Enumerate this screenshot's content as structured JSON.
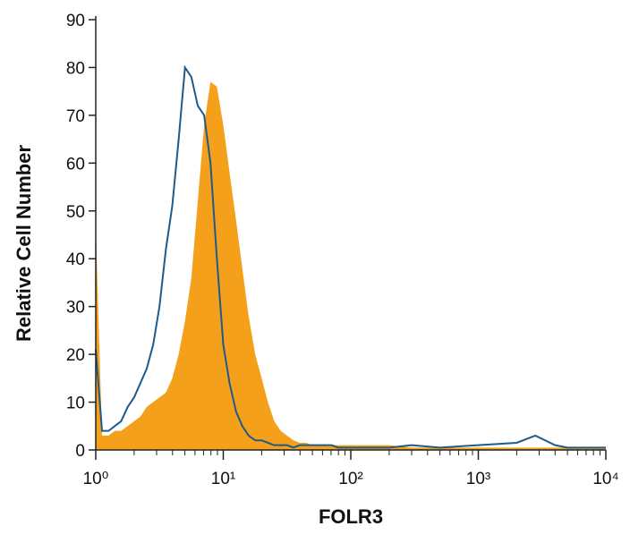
{
  "chart_data": {
    "type": "histogram-overlay",
    "x_label": "FOLR3",
    "y_label": "Relative Cell Number",
    "x_log": true,
    "xlim": [
      1,
      10000
    ],
    "xticks": [
      {
        "value": 1,
        "label": "10⁰"
      },
      {
        "value": 10,
        "label": "10¹"
      },
      {
        "value": 100,
        "label": "10²"
      },
      {
        "value": 1000,
        "label": "10³"
      },
      {
        "value": 10000,
        "label": "10⁴"
      }
    ],
    "ylim": [
      0,
      90
    ],
    "yticks": [
      0,
      10,
      20,
      30,
      40,
      50,
      60,
      70,
      80,
      90
    ],
    "x": [
      1,
      1.12,
      1.26,
      1.41,
      1.58,
      1.78,
      2,
      2.24,
      2.51,
      2.82,
      3.16,
      3.55,
      3.98,
      4.47,
      5.01,
      5.62,
      6.31,
      7.08,
      7.94,
      8.91,
      10,
      11.2,
      12.6,
      14.1,
      15.8,
      17.8,
      20,
      22.4,
      25.1,
      28.2,
      31.6,
      35.5,
      39.8,
      44.7,
      50.1,
      56.2,
      63.1,
      70.8,
      79.4,
      89.1,
      100,
      200,
      300,
      500,
      1000,
      2000,
      2800,
      4000,
      5000,
      10000
    ],
    "series": [
      {
        "style": "filled",
        "color": "#f5a01a",
        "values": [
          47,
          3,
          3,
          4,
          4,
          5,
          6,
          7,
          9,
          10,
          11,
          12,
          15,
          20,
          27,
          36,
          52,
          68,
          77,
          76,
          68,
          58,
          48,
          38,
          28,
          20,
          15,
          10,
          6,
          4,
          3,
          2,
          1.5,
          1.5,
          1,
          1,
          1,
          1,
          1,
          1,
          1,
          1,
          0.5,
          0.5,
          0.5,
          0.5,
          0.5,
          0.5,
          0.5,
          0.5
        ]
      },
      {
        "style": "outline",
        "color": "#1f5a8a",
        "values": [
          21,
          4,
          4,
          5,
          6,
          9,
          11,
          14,
          17,
          22,
          30,
          42,
          51,
          65,
          80,
          78,
          72,
          70,
          60,
          40,
          22,
          14,
          8,
          5,
          3,
          2,
          2,
          1.5,
          1,
          1,
          1,
          0.5,
          1,
          1,
          1,
          1,
          1,
          1,
          0.5,
          0.5,
          0.5,
          0.5,
          1,
          0.5,
          1,
          1.5,
          3,
          1,
          0.5,
          0.5
        ]
      }
    ]
  }
}
